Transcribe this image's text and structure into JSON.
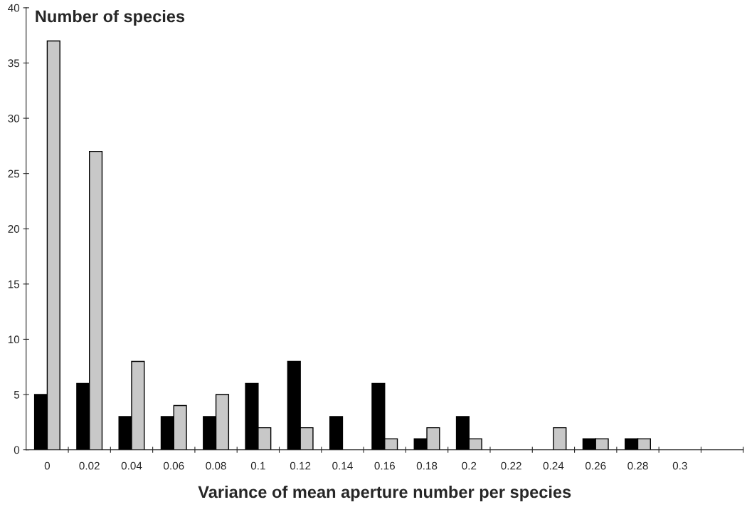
{
  "chart_data": {
    "type": "bar",
    "ylabel": "Number of species",
    "xlabel": "Variance of mean aperture number per species",
    "categories": [
      "0",
      "0.02",
      "0.04",
      "0.06",
      "0.08",
      "0.1",
      "0.12",
      "0.14",
      "0.16",
      "0.18",
      "0.2",
      "0.22",
      "0.24",
      "0.26",
      "0.28",
      "0.3",
      null
    ],
    "series": [
      {
        "color": "#000000",
        "values": [
          5,
          6,
          3,
          3,
          3,
          6,
          8,
          3,
          6,
          1,
          3,
          0,
          0,
          1,
          1,
          0,
          0
        ]
      },
      {
        "color": "#c8c8c8",
        "values": [
          37,
          27,
          8,
          4,
          5,
          2,
          2,
          0,
          1,
          2,
          1,
          0,
          2,
          1,
          1,
          0,
          0
        ]
      }
    ],
    "ylim": [
      0,
      40
    ],
    "yticks": [
      0,
      5,
      10,
      15,
      20,
      25,
      30,
      35,
      40
    ],
    "grid": false,
    "legend": false
  }
}
